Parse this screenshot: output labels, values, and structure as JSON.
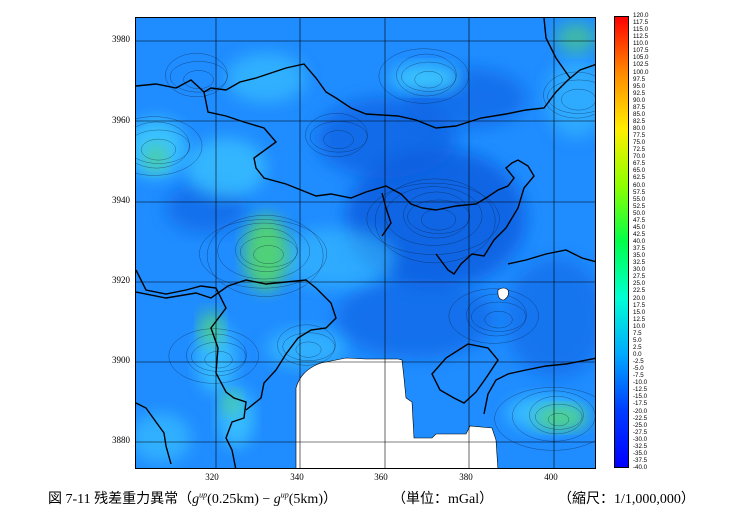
{
  "map": {
    "y_ticks": [
      "3980",
      "3960",
      "3940",
      "3920",
      "3900",
      "3880"
    ],
    "x_ticks": [
      "320",
      "340",
      "360",
      "380",
      "400"
    ],
    "colors": {
      "base": "#1f8cff",
      "low": "#0a5fe0",
      "high": "#3ec8ff",
      "anomaly": "#56d86a",
      "contour": "#0a1c3a",
      "coast": "#000000",
      "nodata": "#ffffff",
      "grid": "#000000"
    }
  },
  "colorbar": {
    "labels": [
      "120.0",
      "117.5",
      "115.0",
      "112.5",
      "110.0",
      "107.5",
      "105.0",
      "102.5",
      "100.0",
      "97.5",
      "95.0",
      "92.5",
      "90.0",
      "87.5",
      "85.0",
      "82.5",
      "80.0",
      "77.5",
      "75.0",
      "72.5",
      "70.0",
      "67.5",
      "65.0",
      "62.5",
      "60.0",
      "57.5",
      "55.0",
      "52.5",
      "50.0",
      "47.5",
      "45.0",
      "42.5",
      "40.0",
      "37.5",
      "35.0",
      "32.5",
      "30.0",
      "27.5",
      "25.0",
      "22.5",
      "20.0",
      "17.5",
      "15.0",
      "12.5",
      "10.0",
      "7.5",
      "5.0",
      "2.5",
      "0.0",
      "-2.5",
      "-5.0",
      "-7.5",
      "-10.0",
      "-12.5",
      "-15.0",
      "-17.5",
      "-20.0",
      "-22.5",
      "-25.0",
      "-27.5",
      "-30.0",
      "-32.5",
      "-35.0",
      "-37.5",
      "-40.0"
    ],
    "gradient_colors": [
      "#ff0000",
      "#ff8a00",
      "#ffee00",
      "#8dff00",
      "#00ff4a",
      "#00ffd5",
      "#00a8ff",
      "#003cff",
      "#0000ff"
    ]
  },
  "caption": {
    "figure_label": "図 7-11 残差重力異常（",
    "g1": "g",
    "sup1": "up",
    "arg1": "(0.25km) − ",
    "g2": "g",
    "sup2": "up",
    "arg2": "(5km)）",
    "unit": "（単位：mGal）",
    "scale": "（縮尺：1/1,000,000）"
  }
}
